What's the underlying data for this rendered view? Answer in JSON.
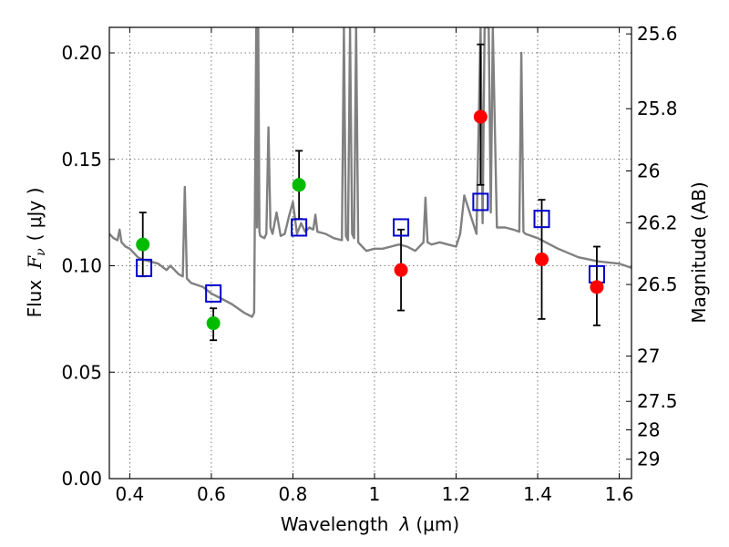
{
  "chart_data": {
    "type": "scatter",
    "title": "",
    "xlabel": "Wavelength",
    "xlabel_symbol": "λ",
    "xlabel_unit": "(μm)",
    "ylabel": "Flux",
    "ylabel_symbol": "F",
    "ylabel_subscript": "ν",
    "ylabel_unit": "( μJy )",
    "y2label": "Magnitude (AB)",
    "xlim": [
      0.35,
      1.63
    ],
    "ylim": [
      0.0,
      0.212
    ],
    "grid": true,
    "x_ticks": [
      0.4,
      0.6,
      0.8,
      1.0,
      1.2,
      1.4,
      1.6
    ],
    "x_tick_labels": [
      "0.4",
      "0.6",
      "0.8",
      "1",
      "1.2",
      "1.4",
      "1.6"
    ],
    "y_ticks": [
      0.0,
      0.05,
      0.1,
      0.15,
      0.2
    ],
    "y_tick_labels": [
      "0.00",
      "0.05",
      "0.10",
      "0.15",
      "0.20"
    ],
    "y2_ticks": [
      25.6,
      25.8,
      26,
      26.2,
      26.5,
      27,
      27.5,
      28,
      29
    ],
    "y2_tick_labels": [
      "25.6",
      "25.8",
      "26",
      "26.2",
      "26.5",
      "27",
      "27.5",
      "28",
      "29"
    ],
    "series": [
      {
        "name": "Model spectrum",
        "kind": "line",
        "color": "#808080",
        "x": [
          0.35,
          0.36,
          0.37,
          0.375,
          0.38,
          0.39,
          0.4,
          0.41,
          0.42,
          0.43,
          0.45,
          0.47,
          0.49,
          0.5,
          0.52,
          0.53,
          0.535,
          0.54,
          0.55,
          0.58,
          0.6,
          0.62,
          0.65,
          0.68,
          0.7,
          0.705,
          0.71,
          0.712,
          0.715,
          0.718,
          0.72,
          0.73,
          0.735,
          0.74,
          0.745,
          0.75,
          0.76,
          0.77,
          0.78,
          0.79,
          0.8,
          0.81,
          0.82,
          0.83,
          0.84,
          0.85,
          0.855,
          0.86,
          0.88,
          0.9,
          0.92,
          0.925,
          0.93,
          0.935,
          0.94,
          0.945,
          0.95,
          0.955,
          0.96,
          0.97,
          0.98,
          1.0,
          1.02,
          1.04,
          1.06,
          1.08,
          1.1,
          1.12,
          1.125,
          1.13,
          1.14,
          1.16,
          1.18,
          1.2,
          1.21,
          1.22,
          1.25,
          1.26,
          1.265,
          1.27,
          1.28,
          1.285,
          1.29,
          1.3,
          1.32,
          1.34,
          1.355,
          1.36,
          1.365,
          1.37,
          1.4,
          1.45,
          1.5,
          1.55,
          1.6,
          1.63
        ],
        "y": [
          0.115,
          0.113,
          0.112,
          0.117,
          0.111,
          0.109,
          0.108,
          0.106,
          0.104,
          0.103,
          0.102,
          0.101,
          0.098,
          0.1,
          0.096,
          0.095,
          0.137,
          0.094,
          0.092,
          0.09,
          0.087,
          0.085,
          0.082,
          0.078,
          0.076,
          0.078,
          0.212,
          0.118,
          0.212,
          0.116,
          0.114,
          0.113,
          0.115,
          0.165,
          0.118,
          0.115,
          0.125,
          0.114,
          0.115,
          0.123,
          0.13,
          0.115,
          0.12,
          0.116,
          0.118,
          0.117,
          0.124,
          0.116,
          0.115,
          0.113,
          0.112,
          0.212,
          0.114,
          0.112,
          0.212,
          0.115,
          0.113,
          0.212,
          0.111,
          0.109,
          0.107,
          0.108,
          0.108,
          0.109,
          0.11,
          0.109,
          0.107,
          0.111,
          0.132,
          0.111,
          0.11,
          0.111,
          0.11,
          0.109,
          0.115,
          0.133,
          0.115,
          0.212,
          0.12,
          0.212,
          0.212,
          0.125,
          0.212,
          0.118,
          0.118,
          0.117,
          0.116,
          0.2,
          0.116,
          0.115,
          0.113,
          0.108,
          0.104,
          0.102,
          0.101,
          0.099
        ]
      },
      {
        "name": "Green detections",
        "kind": "points",
        "marker": "circle",
        "color": "#00bb00",
        "x": [
          0.432,
          0.605,
          0.815
        ],
        "y": [
          0.11,
          0.073,
          0.138
        ]
      },
      {
        "name": "Red detections",
        "kind": "points",
        "marker": "circle",
        "color": "#ff0000",
        "x": [
          1.065,
          1.26,
          1.41,
          1.545
        ],
        "y": [
          0.098,
          0.17,
          0.103,
          0.09
        ]
      },
      {
        "name": "Model photometry",
        "kind": "points",
        "marker": "open-square",
        "color": "#0000cc",
        "x": [
          0.435,
          0.605,
          0.815,
          1.065,
          1.26,
          1.41,
          1.545
        ],
        "y": [
          0.099,
          0.087,
          0.118,
          0.118,
          0.13,
          0.122,
          0.096
        ]
      }
    ],
    "error_bars": [
      {
        "x": 0.432,
        "low": 0.095,
        "high": 0.125
      },
      {
        "x": 0.605,
        "low": 0.065,
        "high": 0.08
      },
      {
        "x": 0.815,
        "low": 0.122,
        "high": 0.154
      },
      {
        "x": 1.065,
        "low": 0.079,
        "high": 0.117
      },
      {
        "x": 1.26,
        "low": 0.138,
        "high": 0.204
      },
      {
        "x": 1.41,
        "low": 0.075,
        "high": 0.131
      },
      {
        "x": 1.545,
        "low": 0.072,
        "high": 0.109
      }
    ]
  }
}
